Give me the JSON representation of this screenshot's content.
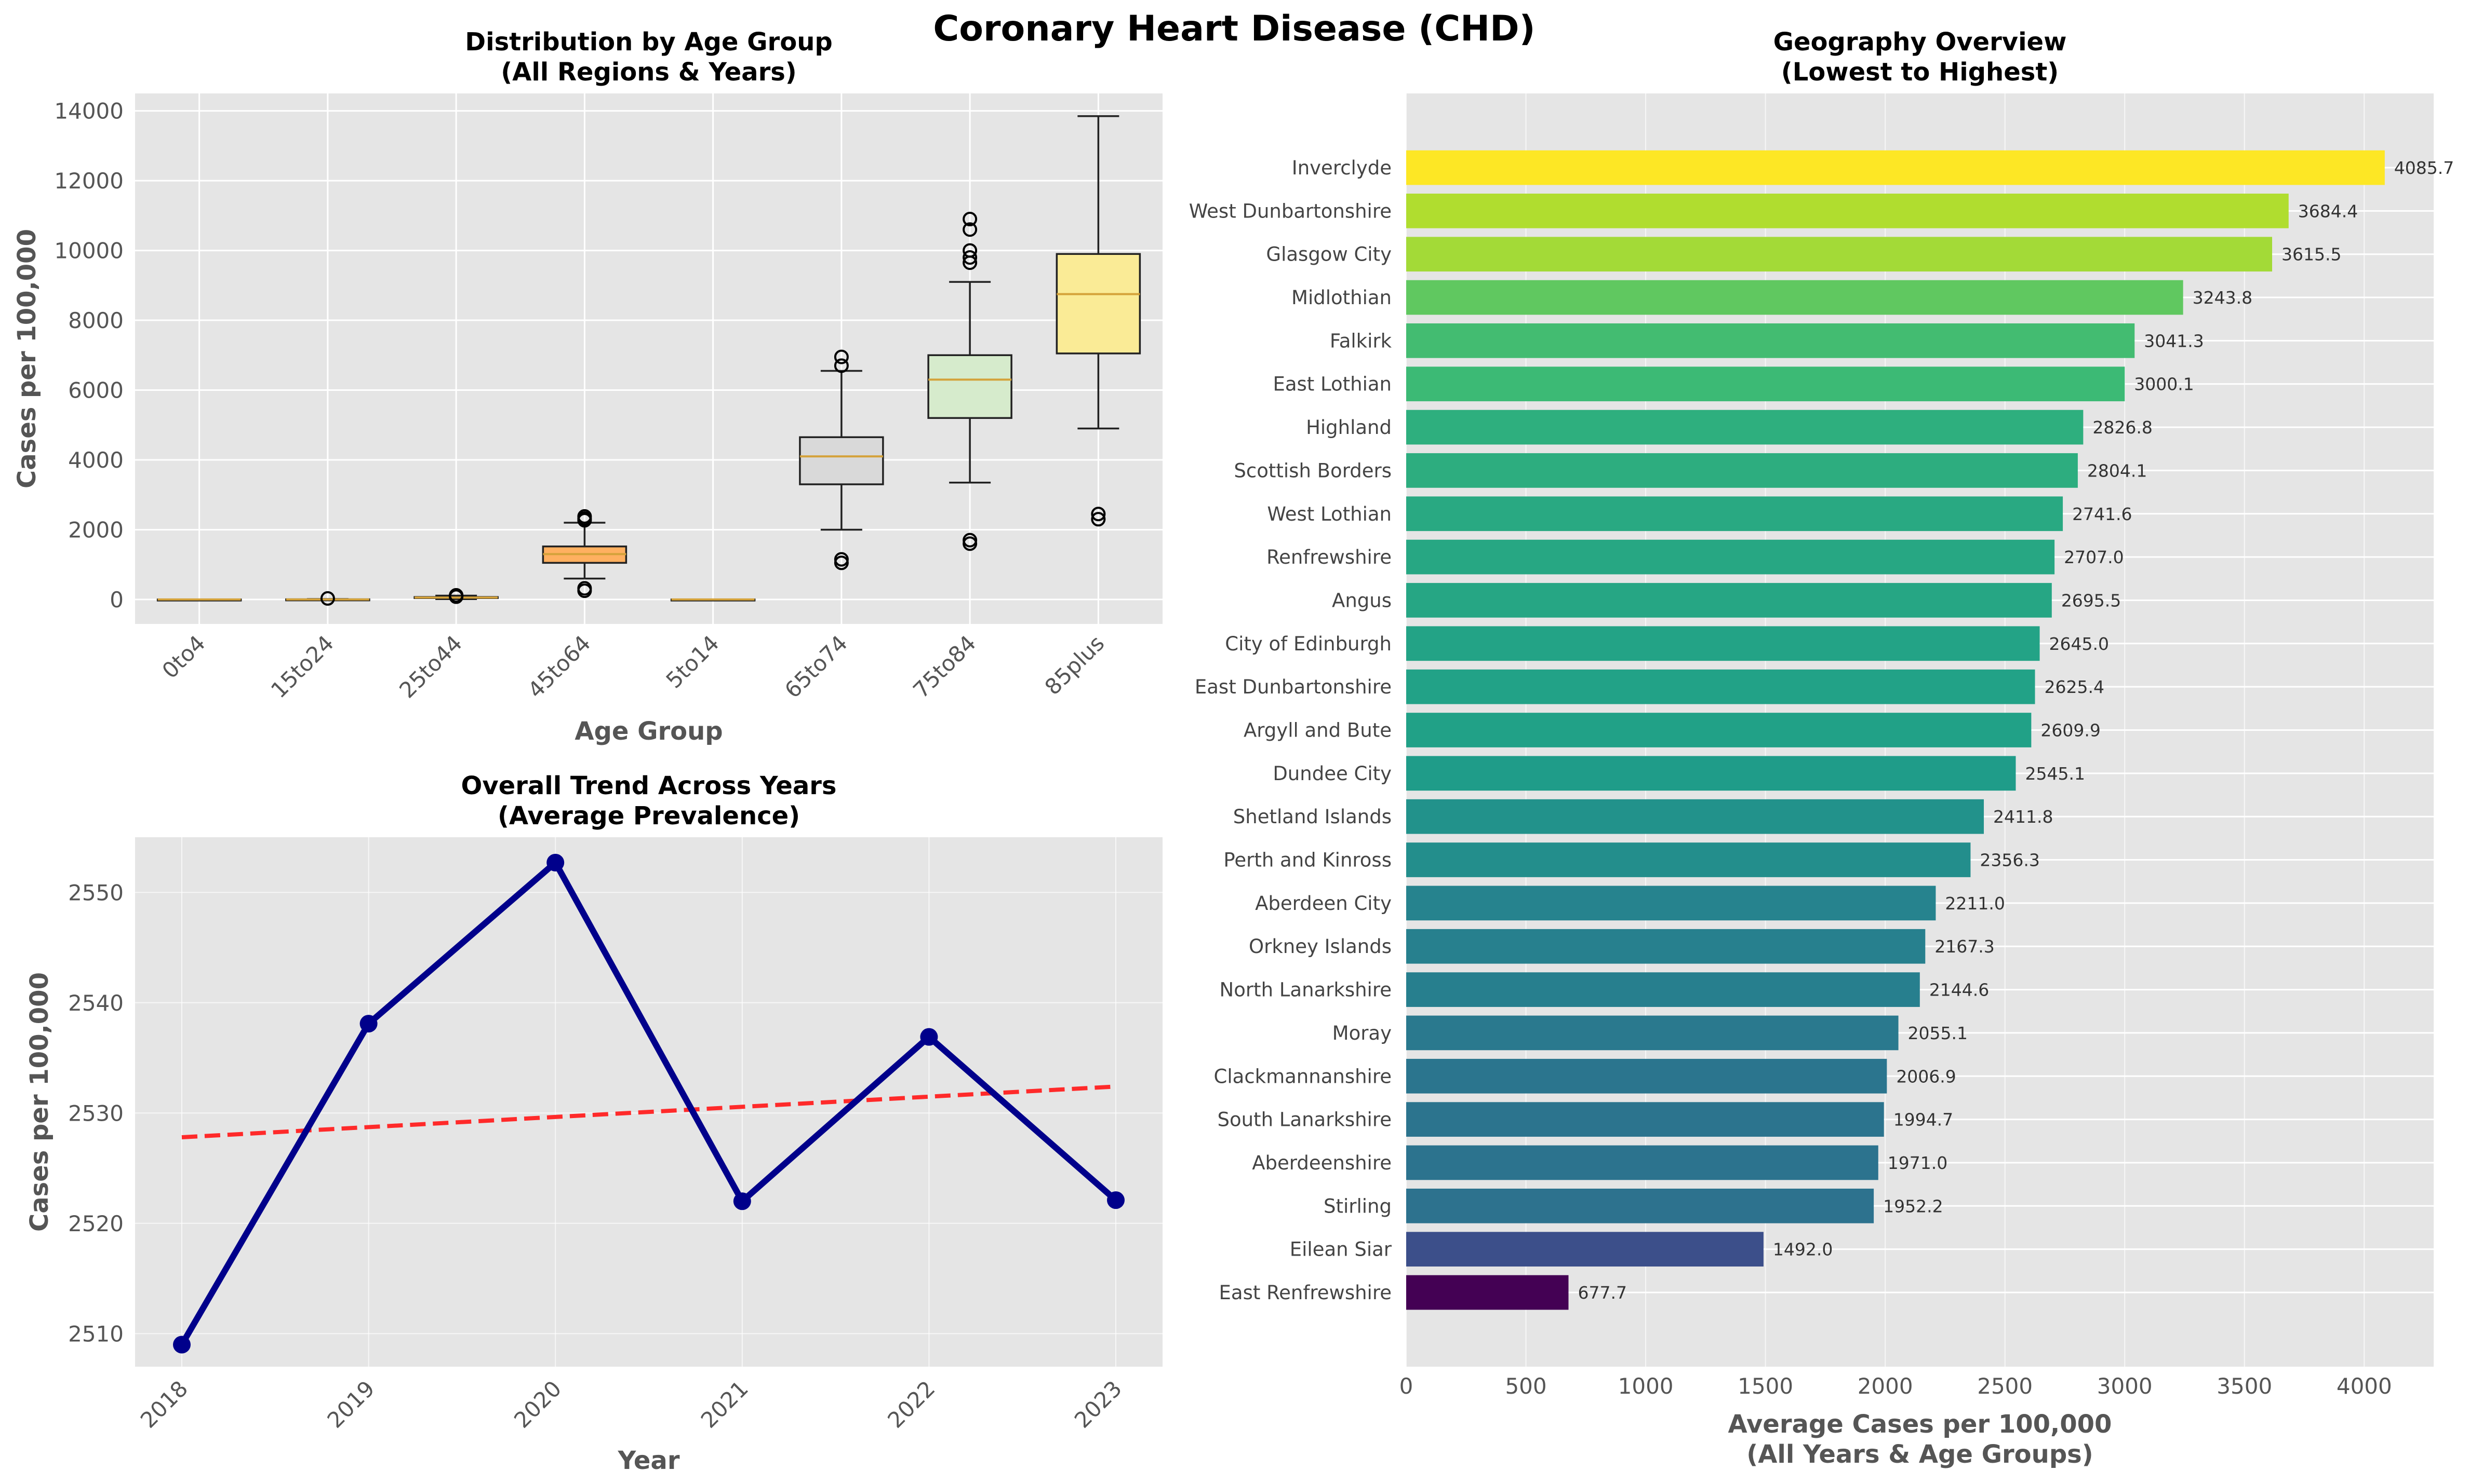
{
  "suptitle": "Coronary Heart Disease (CHD)",
  "colors": {
    "plot_bg": "#e5e5e5",
    "grid": "#ffffff",
    "axis_text": "#555555",
    "title_text": "#000000",
    "box_edge": "#222222",
    "median": "#d4a23a",
    "line": "#00008b",
    "trend": "#ff2a2a"
  },
  "chart_data": [
    {
      "type": "box",
      "title_line1": "Distribution by Age Group",
      "title_line2": "(All Regions & Years)",
      "xlabel": "Age Group",
      "ylabel": "Cases per 100,000",
      "ylim": [
        -700,
        14500
      ],
      "yticks": [
        0,
        2000,
        4000,
        6000,
        8000,
        10000,
        12000,
        14000
      ],
      "grid": true,
      "categories": [
        "0to4",
        "15to24",
        "25to44",
        "45to64",
        "5to14",
        "65to74",
        "75to84",
        "85plus"
      ],
      "boxes": [
        {
          "label": "0to4",
          "whislo": 0,
          "q1": 0,
          "med": 0,
          "q3": 0,
          "whishi": 0,
          "fliers": [],
          "color": "#c9d7ec"
        },
        {
          "label": "15to24",
          "whislo": 0,
          "q1": 0,
          "med": 0,
          "q3": 5,
          "whishi": 12,
          "fliers": [
            30
          ],
          "color": "#fbd5b0"
        },
        {
          "label": "25to44",
          "whislo": 10,
          "q1": 40,
          "med": 55,
          "q3": 70,
          "whishi": 110,
          "fliers": [
            80,
            100,
            120
          ],
          "color": "#cfe7c7"
        },
        {
          "label": "45to64",
          "whislo": 600,
          "q1": 1050,
          "med": 1300,
          "q3": 1520,
          "whishi": 2200,
          "fliers": [
            250,
            320,
            2270,
            2320,
            2380
          ],
          "color": "#ffb060"
        },
        {
          "label": "5to14",
          "whislo": 0,
          "q1": 0,
          "med": 0,
          "q3": 0,
          "whishi": 0,
          "fliers": [],
          "color": "#d9d4ec"
        },
        {
          "label": "65to74",
          "whislo": 2000,
          "q1": 3300,
          "med": 4100,
          "q3": 4650,
          "whishi": 6550,
          "fliers": [
            1050,
            1150,
            6700,
            6950
          ],
          "color": "#d9d9d9"
        },
        {
          "label": "75to84",
          "whislo": 3350,
          "q1": 5200,
          "med": 6300,
          "q3": 7000,
          "whishi": 9100,
          "fliers": [
            1600,
            1700,
            9650,
            9800,
            10000,
            10600,
            10900
          ],
          "color": "#d6ebcc"
        },
        {
          "label": "85plus",
          "whislo": 4900,
          "q1": 7050,
          "med": 8750,
          "q3": 9900,
          "whishi": 13850,
          "fliers": [
            2300,
            2450
          ],
          "color": "#faeb96"
        }
      ]
    },
    {
      "type": "line",
      "title_line1": "Overall Trend Across Years",
      "title_line2": "(Average Prevalence)",
      "xlabel": "Year",
      "ylabel": "Cases per 100,000",
      "ylim": [
        2507,
        2555
      ],
      "yticks": [
        2510,
        2520,
        2530,
        2540,
        2550
      ],
      "grid": true,
      "x": [
        "2018",
        "2019",
        "2020",
        "2021",
        "2022",
        "2023"
      ],
      "values": [
        2509.0,
        2538.1,
        2552.7,
        2522.0,
        2536.9,
        2522.1
      ],
      "trend": [
        2527.8,
        2532.4
      ]
    },
    {
      "type": "bar",
      "orientation": "horizontal",
      "title_line1": "Geography Overview",
      "title_line2": "(Lowest to Highest)",
      "xlabel_line1": "Average Cases per 100,000",
      "xlabel_line2": "(All Years & Age Groups)",
      "xlim": [
        0,
        4290
      ],
      "xticks": [
        0,
        500,
        1000,
        1500,
        2000,
        2500,
        3000,
        3500,
        4000
      ],
      "grid": true,
      "colormap": "viridis",
      "categories": [
        "Inverclyde",
        "West Dunbartonshire",
        "Glasgow City",
        "Midlothian",
        "Falkirk",
        "East Lothian",
        "Highland",
        "Scottish Borders",
        "West Lothian",
        "Renfrewshire",
        "Angus",
        "City of Edinburgh",
        "East Dunbartonshire",
        "Argyll and Bute",
        "Dundee City",
        "Shetland Islands",
        "Perth and Kinross",
        "Aberdeen City",
        "Orkney Islands",
        "North Lanarkshire",
        "Moray",
        "Clackmannanshire",
        "South Lanarkshire",
        "Aberdeenshire",
        "Stirling",
        "Eilean Siar",
        "East Renfrewshire"
      ],
      "values": [
        4085.7,
        3684.4,
        3615.5,
        3243.8,
        3041.3,
        3000.1,
        2826.8,
        2804.1,
        2741.6,
        2707.0,
        2695.5,
        2645.0,
        2625.4,
        2609.9,
        2545.1,
        2411.8,
        2356.3,
        2211.0,
        2167.3,
        2144.6,
        2055.1,
        2006.9,
        1994.7,
        1971.0,
        1952.2,
        1492.0,
        677.7
      ],
      "value_labels": [
        "4085.7",
        "3684.4",
        "3615.5",
        "3243.8",
        "3041.3",
        "3000.1",
        "2826.8",
        "2804.1",
        "2741.6",
        "2707.0",
        "2695.5",
        "2645.0",
        "2625.4",
        "2609.9",
        "2545.1",
        "2411.8",
        "2356.3",
        "2211.0",
        "2167.3",
        "2144.6",
        "2055.1",
        "2006.9",
        "1994.7",
        "1971.0",
        "1952.2",
        "1492.0",
        "677.7"
      ]
    }
  ]
}
